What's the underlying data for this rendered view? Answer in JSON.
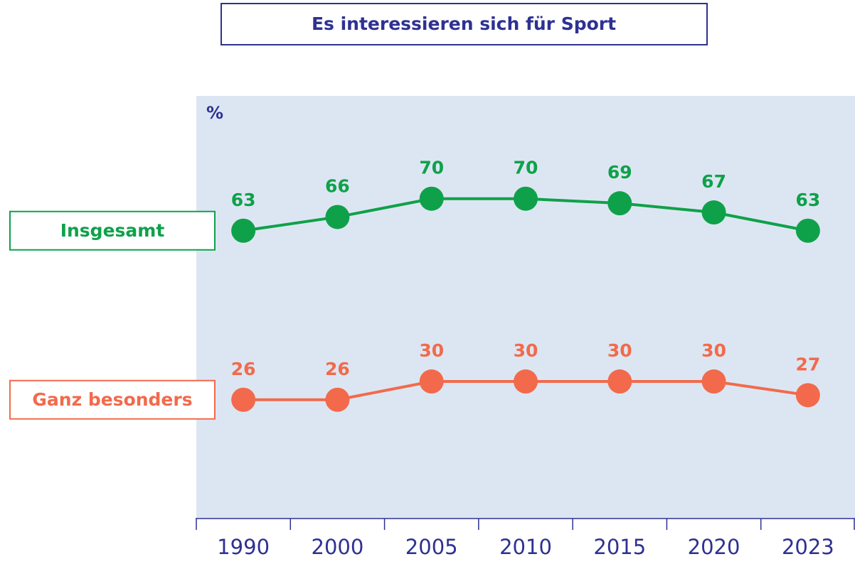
{
  "chart_data": {
    "type": "line",
    "title": "Es interessieren sich für Sport",
    "ylabel": "%",
    "categories": [
      "1990",
      "2000",
      "2005",
      "2010",
      "2015",
      "2020",
      "2023"
    ],
    "series": [
      {
        "name": "Insgesamt",
        "color": "#0fa14a",
        "values": [
          63,
          66,
          70,
          70,
          69,
          67,
          63
        ]
      },
      {
        "name": "Ganz besonders",
        "color": "#f26a4b",
        "values": [
          26,
          26,
          30,
          30,
          30,
          30,
          27
        ]
      }
    ],
    "ylim": [
      0,
      92.5
    ],
    "legend": "left"
  }
}
